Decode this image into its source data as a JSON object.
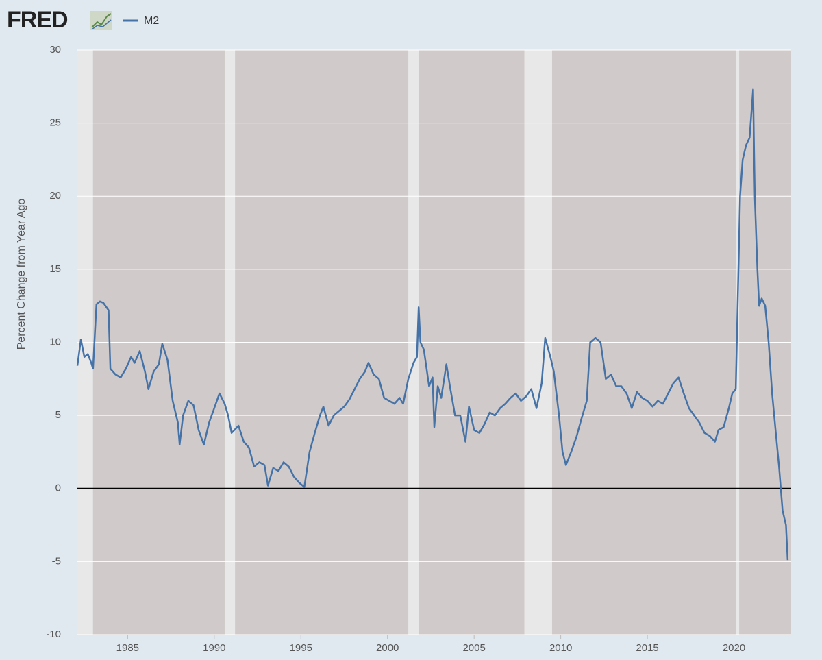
{
  "chart_data": {
    "type": "line",
    "brand": "FRED",
    "ylabel": "Percent Change from Year Ago",
    "xlim": [
      1982.1,
      2023.3
    ],
    "ylim": [
      -10,
      30
    ],
    "xticks": [
      1985,
      1990,
      1995,
      2000,
      2005,
      2010,
      2015,
      2020
    ],
    "yticks": [
      -10,
      -5,
      0,
      5,
      10,
      15,
      20,
      25,
      30
    ],
    "grid": true,
    "recessions": [
      [
        1982.1,
        1983.0
      ],
      [
        1990.6,
        1991.2
      ],
      [
        2001.2,
        2001.8
      ],
      [
        2007.9,
        2009.5
      ],
      [
        2020.1,
        2020.3
      ]
    ],
    "x": [
      1982.1,
      1982.3,
      1982.5,
      1982.7,
      1982.9,
      1983.0,
      1983.2,
      1983.4,
      1983.6,
      1983.9,
      1984.0,
      1984.3,
      1984.6,
      1984.9,
      1985.2,
      1985.4,
      1985.7,
      1986.0,
      1986.2,
      1986.5,
      1986.8,
      1987.0,
      1987.3,
      1987.6,
      1987.9,
      1988.0,
      1988.2,
      1988.5,
      1988.8,
      1989.1,
      1989.4,
      1989.7,
      1990.0,
      1990.3,
      1990.6,
      1990.8,
      1991.0,
      1991.4,
      1991.7,
      1992.0,
      1992.3,
      1992.6,
      1992.9,
      1993.1,
      1993.4,
      1993.7,
      1994.0,
      1994.3,
      1994.6,
      1994.9,
      1995.2,
      1995.5,
      1995.8,
      1996.1,
      1996.3,
      1996.6,
      1996.9,
      1997.2,
      1997.5,
      1997.8,
      1998.1,
      1998.4,
      1998.7,
      1998.9,
      1999.2,
      1999.5,
      1999.8,
      2000.1,
      2000.4,
      2000.7,
      2000.9,
      2001.2,
      2001.5,
      2001.7,
      2001.8,
      2001.9,
      2002.1,
      2002.4,
      2002.6,
      2002.7,
      2002.9,
      2003.1,
      2003.4,
      2003.6,
      2003.9,
      2004.2,
      2004.5,
      2004.7,
      2005.0,
      2005.3,
      2005.6,
      2005.9,
      2006.2,
      2006.5,
      2006.8,
      2007.1,
      2007.4,
      2007.7,
      2008.0,
      2008.3,
      2008.6,
      2008.9,
      2009.1,
      2009.4,
      2009.6,
      2009.9,
      2010.1,
      2010.3,
      2010.6,
      2010.9,
      2011.2,
      2011.5,
      2011.7,
      2012.0,
      2012.3,
      2012.6,
      2012.9,
      2013.2,
      2013.5,
      2013.8,
      2014.1,
      2014.4,
      2014.7,
      2015.0,
      2015.3,
      2015.6,
      2015.9,
      2016.2,
      2016.5,
      2016.8,
      2017.1,
      2017.4,
      2017.7,
      2018.0,
      2018.3,
      2018.6,
      2018.9,
      2019.1,
      2019.4,
      2019.7,
      2019.9,
      2020.1,
      2020.2,
      2020.35,
      2020.5,
      2020.7,
      2020.9,
      2021.1,
      2021.2,
      2021.35,
      2021.45,
      2021.6,
      2021.8,
      2022.0,
      2022.2,
      2022.4,
      2022.6,
      2022.8,
      2023.0,
      2023.1
    ],
    "series": [
      {
        "name": "M2",
        "color": "#4572a7",
        "values": [
          8.4,
          10.2,
          9.0,
          9.2,
          8.6,
          8.2,
          12.6,
          12.8,
          12.7,
          12.2,
          8.2,
          7.8,
          7.6,
          8.2,
          9.0,
          8.6,
          9.4,
          8.0,
          6.8,
          8.0,
          8.5,
          9.9,
          8.8,
          6.0,
          4.5,
          3.0,
          5.0,
          6.0,
          5.7,
          4.0,
          3.0,
          4.5,
          5.5,
          6.5,
          5.8,
          5.0,
          3.8,
          4.3,
          3.2,
          2.8,
          1.5,
          1.8,
          1.6,
          0.2,
          1.4,
          1.2,
          1.8,
          1.5,
          0.8,
          0.4,
          0.1,
          2.5,
          3.8,
          5.0,
          5.6,
          4.3,
          5.0,
          5.3,
          5.6,
          6.1,
          6.8,
          7.5,
          8.0,
          8.6,
          7.8,
          7.5,
          6.2,
          6.0,
          5.8,
          6.2,
          5.8,
          7.5,
          8.6,
          9.0,
          12.4,
          10.0,
          9.5,
          7.0,
          7.6,
          4.2,
          7.0,
          6.2,
          8.5,
          7.0,
          5.0,
          5.0,
          3.2,
          5.6,
          4.0,
          3.8,
          4.4,
          5.2,
          5.0,
          5.5,
          5.8,
          6.2,
          6.5,
          6.0,
          6.3,
          6.8,
          5.5,
          7.2,
          10.3,
          9.0,
          8.0,
          5.0,
          2.5,
          1.6,
          2.5,
          3.5,
          4.8,
          6.0,
          10.0,
          10.3,
          10.0,
          7.5,
          7.8,
          7.0,
          7.0,
          6.5,
          5.5,
          6.6,
          6.2,
          6.0,
          5.6,
          6.0,
          5.8,
          6.5,
          7.2,
          7.6,
          6.5,
          5.5,
          5.0,
          4.5,
          3.8,
          3.6,
          3.2,
          4.0,
          4.2,
          5.5,
          6.5,
          6.8,
          12.0,
          20.0,
          22.5,
          23.5,
          24.0,
          27.3,
          20.0,
          15.0,
          12.5,
          13.0,
          12.5,
          10.0,
          6.5,
          4.0,
          1.5,
          -1.5,
          -2.5,
          -4.9
        ]
      }
    ]
  }
}
